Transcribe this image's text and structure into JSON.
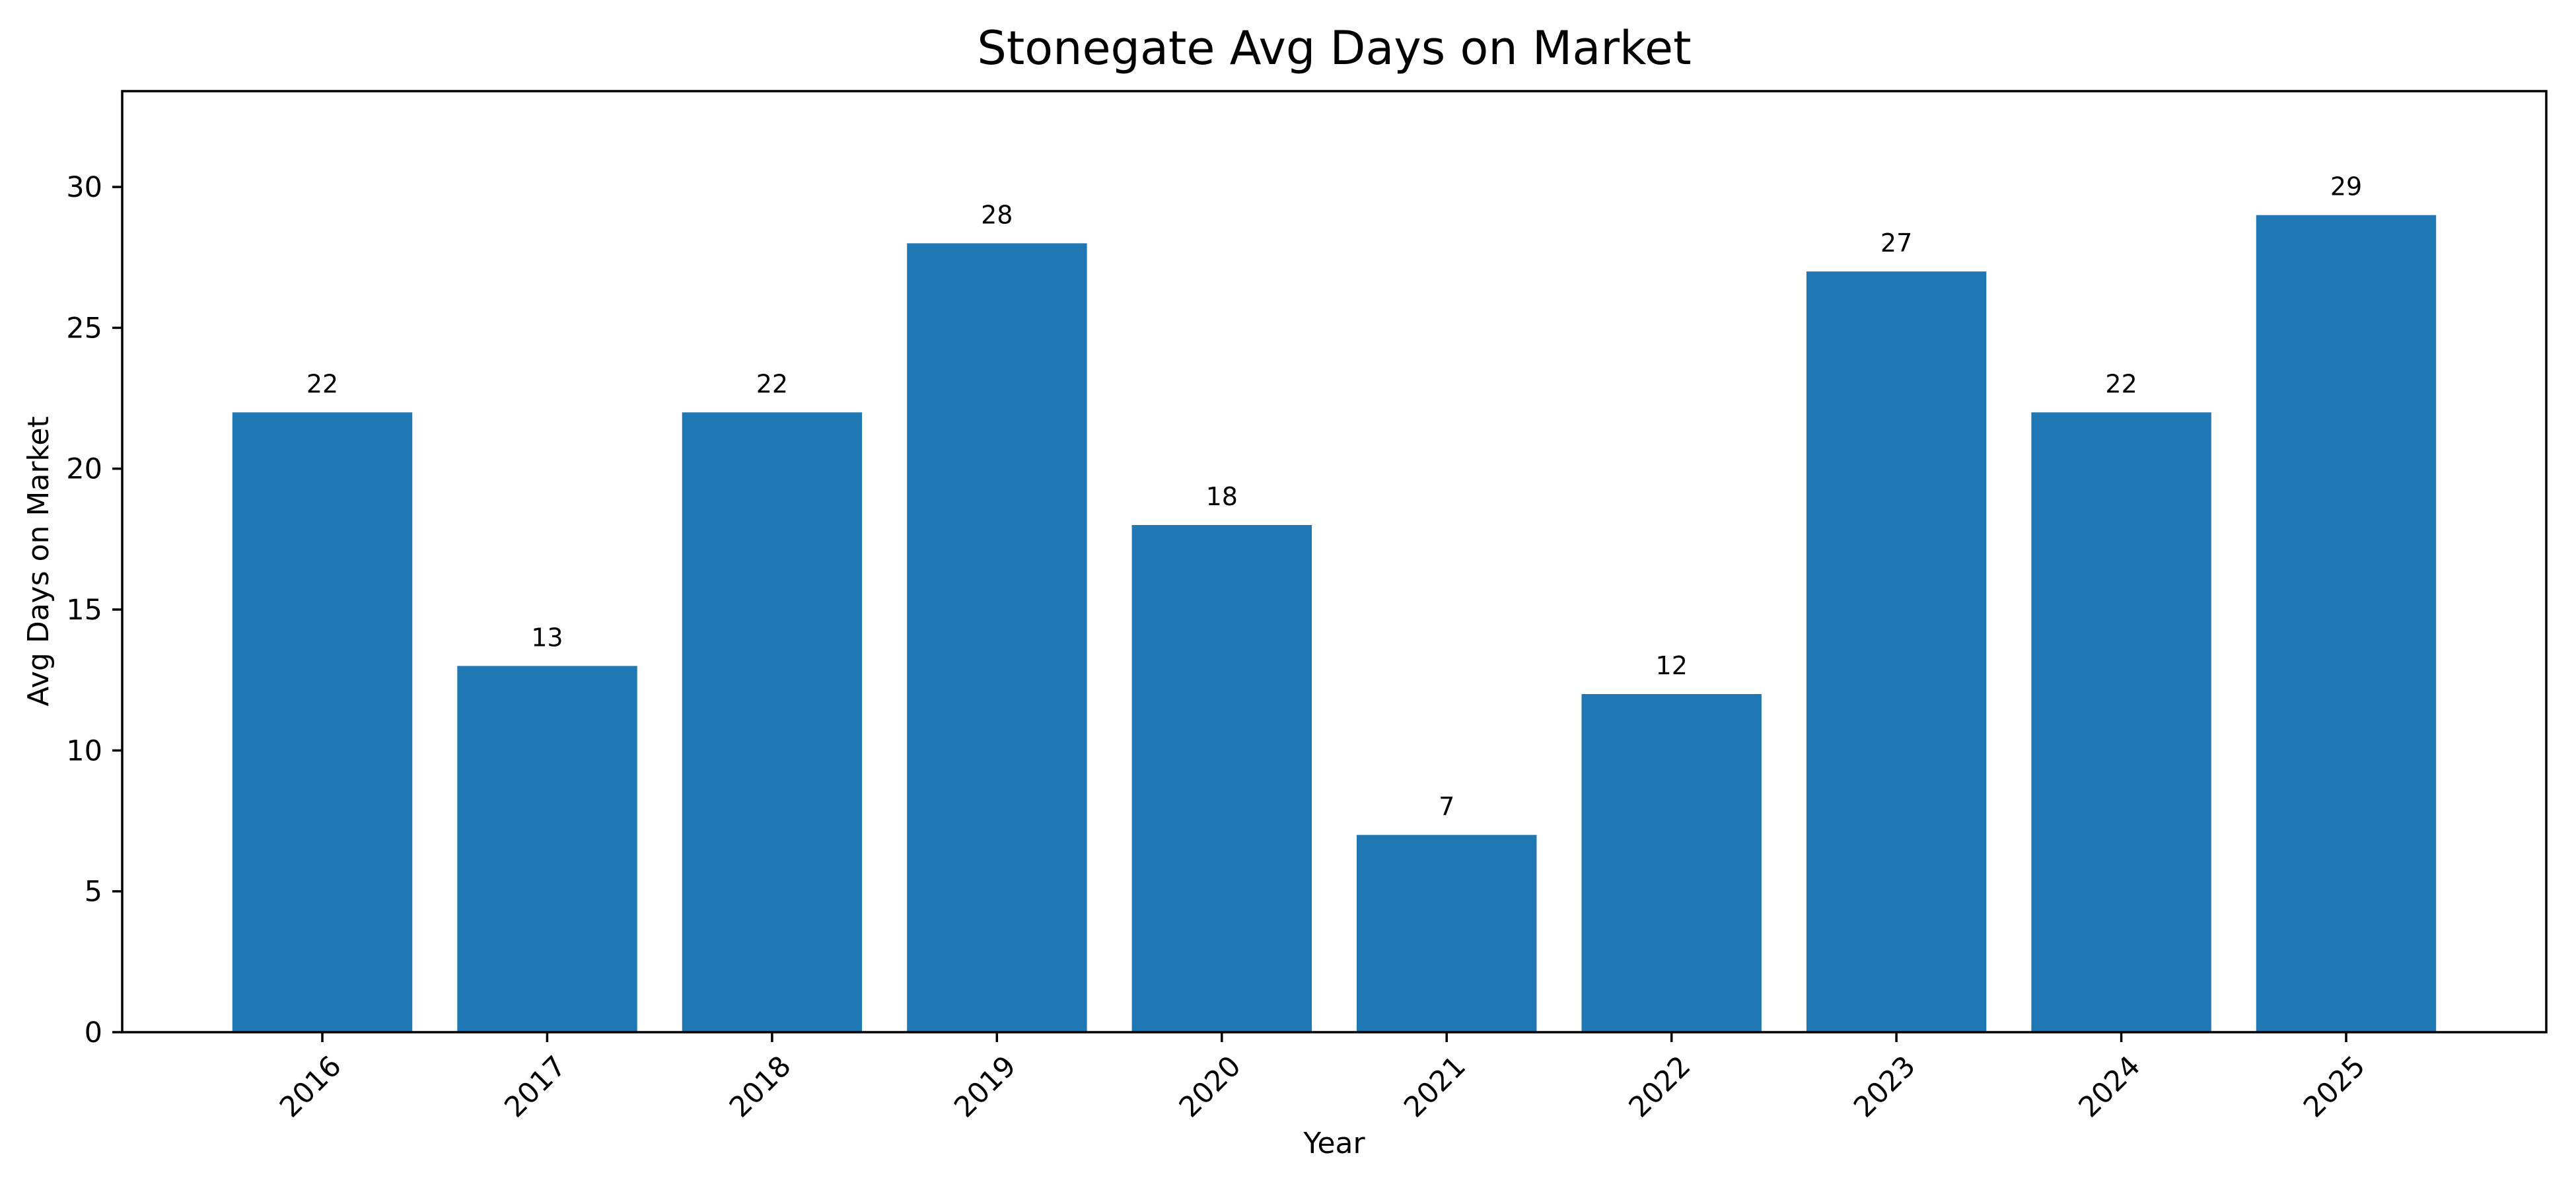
{
  "figure": {
    "background": "#ffffff"
  },
  "chart_data": {
    "type": "bar",
    "title": "Stonegate Avg Days on Market",
    "xlabel": "Year",
    "ylabel": "Avg Days on Market",
    "categories": [
      "2016",
      "2017",
      "2018",
      "2019",
      "2020",
      "2021",
      "2022",
      "2023",
      "2024",
      "2025"
    ],
    "values": [
      22,
      13,
      22,
      28,
      18,
      7,
      12,
      27,
      22,
      29
    ],
    "bar_value_labels": [
      "22",
      "13",
      "22",
      "28",
      "18",
      "7",
      "12",
      "27",
      "22",
      "29"
    ],
    "yticks": [
      0,
      5,
      10,
      15,
      20,
      25,
      30
    ],
    "ytick_labels": [
      "0",
      "5",
      "10",
      "15",
      "20",
      "25",
      "30"
    ],
    "ylim": [
      0,
      33.4
    ],
    "x_tick_rotation_deg": 45,
    "bar_width_fraction": 0.8,
    "grid": false,
    "legend": null,
    "colors": {
      "bar": "#1f77b4",
      "text": "#000000",
      "spine": "#000000",
      "background": "#ffffff"
    }
  }
}
